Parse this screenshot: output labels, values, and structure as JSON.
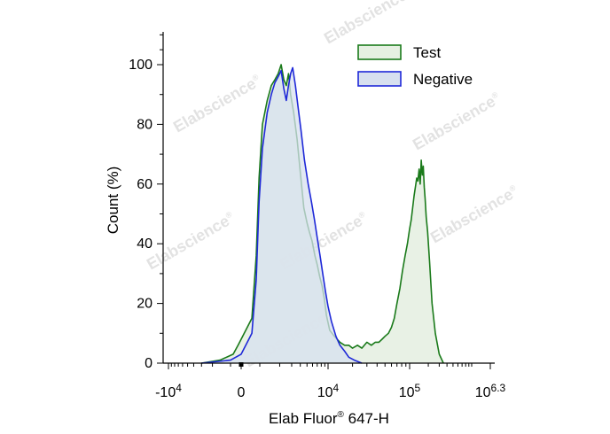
{
  "chart_data": {
    "type": "area",
    "xlabel": "Elab Fluor",
    "xlabel_sup": "®",
    "xlabel_suffix": " 647-H",
    "ylabel": "Count  (%)",
    "xscale": "biexponential",
    "ylim": [
      0,
      110
    ],
    "yticks": [
      0,
      20,
      40,
      60,
      80,
      100
    ],
    "grid": false,
    "legend_position": "top-right",
    "xtick_labels": [
      {
        "base": "-10",
        "exp": "4"
      },
      {
        "base": "0",
        "exp": ""
      },
      {
        "base": "10",
        "exp": "4"
      },
      {
        "base": "10",
        "exp": "5"
      },
      {
        "base": "10",
        "exp": "6.3"
      }
    ],
    "series": [
      {
        "name": "Test",
        "color": "#1a7a1a",
        "fill": "#e6f0e2",
        "points": [
          [
            -3000,
            0
          ],
          [
            -1500,
            1
          ],
          [
            -500,
            3
          ],
          [
            -100,
            6
          ],
          [
            300,
            15
          ],
          [
            600,
            36
          ],
          [
            900,
            62
          ],
          [
            1100,
            80
          ],
          [
            1300,
            88
          ],
          [
            1500,
            93
          ],
          [
            1700,
            95
          ],
          [
            1900,
            97
          ],
          [
            2100,
            100
          ],
          [
            2300,
            95
          ],
          [
            2500,
            93
          ],
          [
            2700,
            97
          ],
          [
            2900,
            90
          ],
          [
            3200,
            84
          ],
          [
            3600,
            75
          ],
          [
            4000,
            64
          ],
          [
            4500,
            52
          ],
          [
            5000,
            47
          ],
          [
            5400,
            44
          ],
          [
            5900,
            41
          ],
          [
            6500,
            36
          ],
          [
            7000,
            33
          ],
          [
            7600,
            29
          ],
          [
            8200,
            26
          ],
          [
            8800,
            22
          ],
          [
            9500,
            16
          ],
          [
            10500,
            11
          ],
          [
            12000,
            9
          ],
          [
            14000,
            7
          ],
          [
            16000,
            6
          ],
          [
            18000,
            6
          ],
          [
            20000,
            5
          ],
          [
            23000,
            6
          ],
          [
            26000,
            5
          ],
          [
            30000,
            7
          ],
          [
            34000,
            6
          ],
          [
            38000,
            7
          ],
          [
            42000,
            7
          ],
          [
            46000,
            8
          ],
          [
            50000,
            9
          ],
          [
            55000,
            10
          ],
          [
            60000,
            12
          ],
          [
            65000,
            15
          ],
          [
            70000,
            20
          ],
          [
            76000,
            25
          ],
          [
            82000,
            31
          ],
          [
            88000,
            36
          ],
          [
            94000,
            40
          ],
          [
            100000,
            45
          ],
          [
            106000,
            48
          ],
          [
            112000,
            52
          ],
          [
            118000,
            56
          ],
          [
            124000,
            59
          ],
          [
            130000,
            62
          ],
          [
            136000,
            61
          ],
          [
            142000,
            65
          ],
          [
            148000,
            60
          ],
          [
            154000,
            68
          ],
          [
            160000,
            63
          ],
          [
            166000,
            66
          ],
          [
            172000,
            59
          ],
          [
            178000,
            55
          ],
          [
            185000,
            49
          ],
          [
            195000,
            44
          ],
          [
            210000,
            34
          ],
          [
            230000,
            20
          ],
          [
            260000,
            10
          ],
          [
            300000,
            3
          ],
          [
            350000,
            0
          ]
        ]
      },
      {
        "name": "Negative",
        "color": "#1e28d8",
        "fill": "#d7e0ef",
        "points": [
          [
            -3000,
            0
          ],
          [
            -1000,
            1
          ],
          [
            0,
            3
          ],
          [
            300,
            10
          ],
          [
            600,
            28
          ],
          [
            900,
            54
          ],
          [
            1100,
            72
          ],
          [
            1300,
            84
          ],
          [
            1500,
            90
          ],
          [
            1700,
            94
          ],
          [
            1900,
            96
          ],
          [
            2100,
            98
          ],
          [
            2300,
            92
          ],
          [
            2500,
            88
          ],
          [
            2700,
            93
          ],
          [
            2900,
            97
          ],
          [
            3100,
            99
          ],
          [
            3400,
            93
          ],
          [
            3700,
            86
          ],
          [
            4100,
            78
          ],
          [
            4600,
            68
          ],
          [
            5200,
            60
          ],
          [
            5800,
            54
          ],
          [
            6400,
            48
          ],
          [
            7000,
            42
          ],
          [
            7700,
            36
          ],
          [
            8400,
            30
          ],
          [
            9200,
            24
          ],
          [
            10000,
            19
          ],
          [
            11000,
            14
          ],
          [
            12500,
            9
          ],
          [
            14000,
            6
          ],
          [
            16000,
            4
          ],
          [
            18000,
            2
          ],
          [
            21000,
            1
          ],
          [
            26000,
            0
          ]
        ]
      }
    ]
  },
  "watermarks": {
    "text": "Elabscience",
    "sup": "®"
  }
}
